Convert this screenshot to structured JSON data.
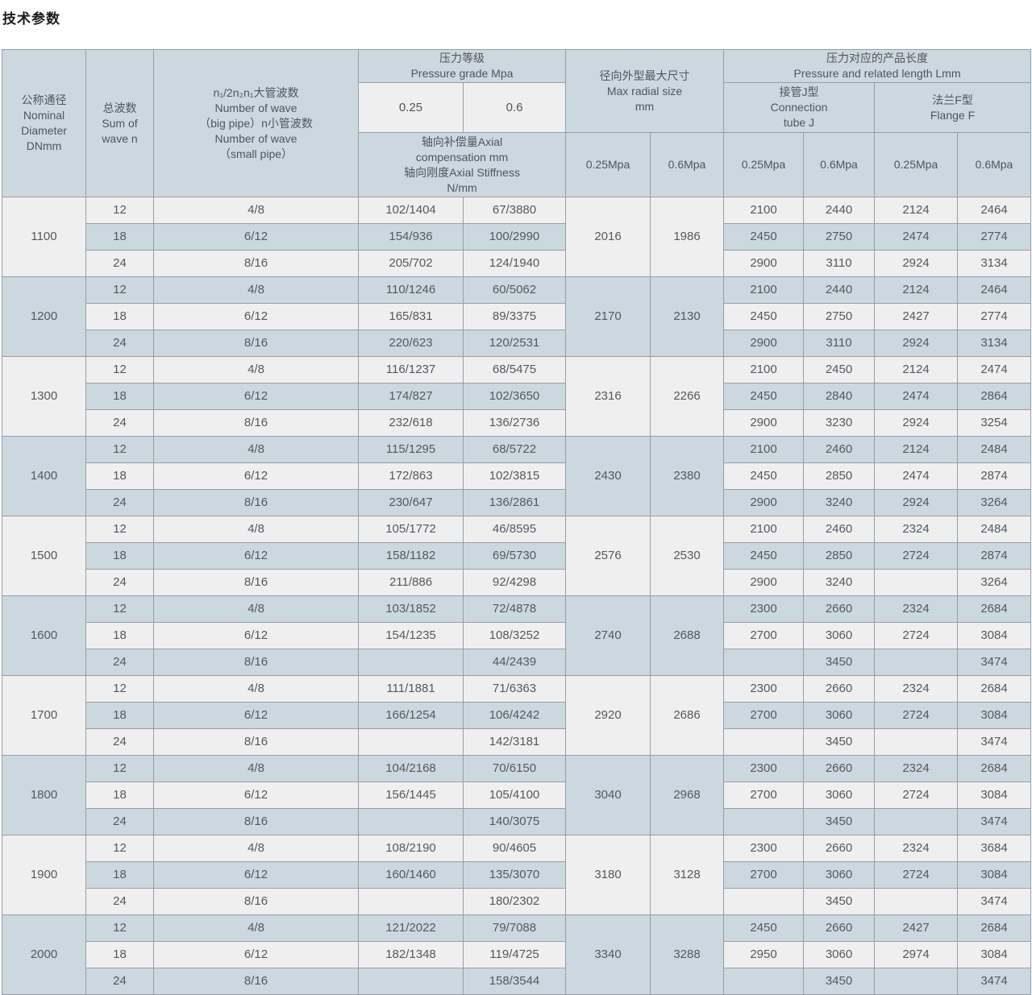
{
  "title": "技术参数",
  "table": {
    "header": {
      "nominal_diameter": "公称通径\nNominal\nDiameter\nDNmm",
      "sum_of_wave": "总波数\nSum of\nwave n",
      "wave_numbers": "n₁/2n₂n₁大管波数\nNumber of wave\n（big pipe）n小管波数\nNumber of wave\n（small pipe）",
      "pressure_grade": "压力等级\nPressure grade Mpa",
      "pressure_025": "0.25",
      "pressure_06": "0.6",
      "axial": "轴向补偿量Axial\ncompensation mm\n轴向刚度Axial Stiffness\nN/mm",
      "max_radial": "径向外型最大尺寸\nMax radial size\nmm",
      "related_length": "压力对应的产品长度\nPressure and related length Lmm",
      "connection_tube": "接管J型\nConnection\ntube J",
      "flange": "法兰F型\nFlange F",
      "mpa_025": "0.25Mpa",
      "mpa_06": "0.6Mpa"
    },
    "rows": [
      {
        "dn": "1100",
        "r025": "2016",
        "r06": "1986",
        "waves": [
          {
            "n": "12",
            "pipes": "4/8",
            "a025": "102/1404",
            "a06": "67/3880",
            "j025": "2100",
            "j06": "2440",
            "f025": "2124",
            "f06": "2464"
          },
          {
            "n": "18",
            "pipes": "6/12",
            "a025": "154/936",
            "a06": "100/2990",
            "j025": "2450",
            "j06": "2750",
            "f025": "2474",
            "f06": "2774"
          },
          {
            "n": "24",
            "pipes": "8/16",
            "a025": "205/702",
            "a06": "124/1940",
            "j025": "2900",
            "j06": "3110",
            "f025": "2924",
            "f06": "3134"
          }
        ]
      },
      {
        "dn": "1200",
        "r025": "2170",
        "r06": "2130",
        "waves": [
          {
            "n": "12",
            "pipes": "4/8",
            "a025": "110/1246",
            "a06": "60/5062",
            "j025": "2100",
            "j06": "2440",
            "f025": "2124",
            "f06": "2464"
          },
          {
            "n": "18",
            "pipes": "6/12",
            "a025": "165/831",
            "a06": "89/3375",
            "j025": "2450",
            "j06": "2750",
            "f025": "2427",
            "f06": "2774"
          },
          {
            "n": "24",
            "pipes": "8/16",
            "a025": "220/623",
            "a06": "120/2531",
            "j025": "2900",
            "j06": "3110",
            "f025": "2924",
            "f06": "3134"
          }
        ]
      },
      {
        "dn": "1300",
        "r025": "2316",
        "r06": "2266",
        "waves": [
          {
            "n": "12",
            "pipes": "4/8",
            "a025": "116/1237",
            "a06": "68/5475",
            "j025": "2100",
            "j06": "2450",
            "f025": "2124",
            "f06": "2474"
          },
          {
            "n": "18",
            "pipes": "6/12",
            "a025": "174/827",
            "a06": "102/3650",
            "j025": "2450",
            "j06": "2840",
            "f025": "2474",
            "f06": "2864"
          },
          {
            "n": "24",
            "pipes": "8/16",
            "a025": "232/618",
            "a06": "136/2736",
            "j025": "2900",
            "j06": "3230",
            "f025": "2924",
            "f06": "3254"
          }
        ]
      },
      {
        "dn": "1400",
        "r025": "2430",
        "r06": "2380",
        "waves": [
          {
            "n": "12",
            "pipes": "4/8",
            "a025": "115/1295",
            "a06": "68/5722",
            "j025": "2100",
            "j06": "2460",
            "f025": "2124",
            "f06": "2484"
          },
          {
            "n": "18",
            "pipes": "6/12",
            "a025": "172/863",
            "a06": "102/3815",
            "j025": "2450",
            "j06": "2850",
            "f025": "2474",
            "f06": "2874"
          },
          {
            "n": "24",
            "pipes": "8/16",
            "a025": "230/647",
            "a06": "136/2861",
            "j025": "2900",
            "j06": "3240",
            "f025": "2924",
            "f06": "3264"
          }
        ]
      },
      {
        "dn": "1500",
        "r025": "2576",
        "r06": "2530",
        "waves": [
          {
            "n": "12",
            "pipes": "4/8",
            "a025": "105/1772",
            "a06": "46/8595",
            "j025": "2100",
            "j06": "2460",
            "f025": "2324",
            "f06": "2484"
          },
          {
            "n": "18",
            "pipes": "6/12",
            "a025": "158/1182",
            "a06": "69/5730",
            "j025": "2450",
            "j06": "2850",
            "f025": "2724",
            "f06": "2874"
          },
          {
            "n": "24",
            "pipes": "8/16",
            "a025": "211/886",
            "a06": "92/4298",
            "j025": "2900",
            "j06": "3240",
            "f025": "",
            "f06": "3264"
          }
        ]
      },
      {
        "dn": "1600",
        "r025": "2740",
        "r06": "2688",
        "waves": [
          {
            "n": "12",
            "pipes": "4/8",
            "a025": "103/1852",
            "a06": "72/4878",
            "j025": "2300",
            "j06": "2660",
            "f025": "2324",
            "f06": "2684"
          },
          {
            "n": "18",
            "pipes": "6/12",
            "a025": "154/1235",
            "a06": "108/3252",
            "j025": "2700",
            "j06": "3060",
            "f025": "2724",
            "f06": "3084"
          },
          {
            "n": "24",
            "pipes": "8/16",
            "a025": "",
            "a06": "44/2439",
            "j025": "",
            "j06": "3450",
            "f025": "",
            "f06": "3474"
          }
        ]
      },
      {
        "dn": "1700",
        "r025": "2920",
        "r06": "2686",
        "waves": [
          {
            "n": "12",
            "pipes": "4/8",
            "a025": "111/1881",
            "a06": "71/6363",
            "j025": "2300",
            "j06": "2660",
            "f025": "2324",
            "f06": "2684"
          },
          {
            "n": "18",
            "pipes": "6/12",
            "a025": "166/1254",
            "a06": "106/4242",
            "j025": "2700",
            "j06": "3060",
            "f025": "2724",
            "f06": "3084"
          },
          {
            "n": "24",
            "pipes": "8/16",
            "a025": "",
            "a06": "142/3181",
            "j025": "",
            "j06": "3450",
            "f025": "",
            "f06": "3474"
          }
        ]
      },
      {
        "dn": "1800",
        "r025": "3040",
        "r06": "2968",
        "waves": [
          {
            "n": "12",
            "pipes": "4/8",
            "a025": "104/2168",
            "a06": "70/6150",
            "j025": "2300",
            "j06": "2660",
            "f025": "2324",
            "f06": "2684"
          },
          {
            "n": "18",
            "pipes": "6/12",
            "a025": "156/1445",
            "a06": "105/4100",
            "j025": "2700",
            "j06": "3060",
            "f025": "2724",
            "f06": "3084"
          },
          {
            "n": "24",
            "pipes": "8/16",
            "a025": "",
            "a06": "140/3075",
            "j025": "",
            "j06": "3450",
            "f025": "",
            "f06": "3474"
          }
        ]
      },
      {
        "dn": "1900",
        "r025": "3180",
        "r06": "3128",
        "waves": [
          {
            "n": "12",
            "pipes": "4/8",
            "a025": "108/2190",
            "a06": "90/4605",
            "j025": "2300",
            "j06": "2660",
            "f025": "2324",
            "f06": "3684"
          },
          {
            "n": "18",
            "pipes": "6/12",
            "a025": "160/1460",
            "a06": "135/3070",
            "j025": "2700",
            "j06": "3060",
            "f025": "2724",
            "f06": "3084"
          },
          {
            "n": "24",
            "pipes": "8/16",
            "a025": "",
            "a06": "180/2302",
            "j025": "",
            "j06": "3450",
            "f025": "",
            "f06": "3474"
          }
        ]
      },
      {
        "dn": "2000",
        "r025": "3340",
        "r06": "3288",
        "waves": [
          {
            "n": "12",
            "pipes": "4/8",
            "a025": "121/2022",
            "a06": "79/7088",
            "j025": "2450",
            "j06": "2660",
            "f025": "2427",
            "f06": "2684"
          },
          {
            "n": "18",
            "pipes": "6/12",
            "a025": "182/1348",
            "a06": "119/4725",
            "j025": "2950",
            "j06": "3060",
            "f025": "2974",
            "f06": "3084"
          },
          {
            "n": "24",
            "pipes": "8/16",
            "a025": "",
            "a06": "158/3544",
            "j025": "",
            "j06": "3450",
            "f025": "",
            "f06": "3474"
          }
        ]
      }
    ],
    "colors": {
      "header_bg": "#ccd8e0",
      "row_light_bg": "#f0eff0",
      "row_dark_bg": "#ccd8e0",
      "border": "#969ea5",
      "text": "#54585d"
    }
  }
}
